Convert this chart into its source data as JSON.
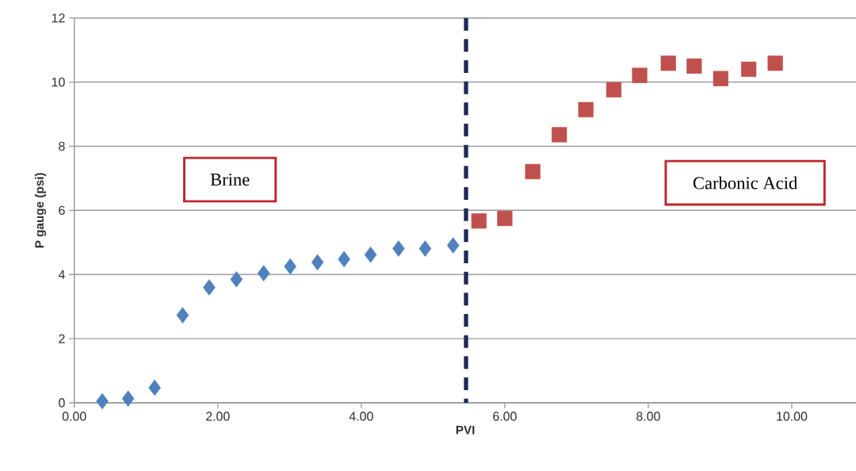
{
  "chart_data": {
    "type": "scatter",
    "xlabel": "PVI",
    "ylabel": "P gauge (psi)",
    "xlim": [
      0,
      10.9
    ],
    "ylim": [
      0,
      12
    ],
    "xticks": [
      {
        "value": 0,
        "label": "0.00"
      },
      {
        "value": 2,
        "label": "2.00"
      },
      {
        "value": 4,
        "label": "4.00"
      },
      {
        "value": 6,
        "label": "6.00"
      },
      {
        "value": 8,
        "label": "8.00"
      },
      {
        "value": 10,
        "label": "10.00"
      }
    ],
    "yticks": [
      0,
      2,
      4,
      6,
      8,
      10,
      12
    ],
    "grid": "y",
    "series": [
      {
        "color": "#4f81bd",
        "marker": "diamond",
        "x": [
          0.39,
          0.75,
          1.12,
          1.51,
          1.88,
          2.26,
          2.64,
          3.01,
          3.39,
          3.76,
          4.13,
          4.52,
          4.89,
          5.28
        ],
        "values": [
          0.05,
          0.13,
          0.47,
          2.73,
          3.6,
          3.85,
          4.04,
          4.25,
          4.38,
          4.48,
          4.62,
          4.81,
          4.81,
          4.91
        ]
      },
      {
        "color": "#c0504d",
        "marker": "square",
        "x": [
          5.64,
          6.0,
          6.39,
          6.76,
          7.13,
          7.52,
          7.88,
          8.28,
          8.64,
          9.01,
          9.4,
          9.77
        ],
        "values": [
          5.67,
          5.75,
          7.21,
          8.36,
          9.14,
          9.76,
          10.21,
          10.59,
          10.5,
          10.11,
          10.4,
          10.59
        ]
      }
    ],
    "ref_lines": [
      {
        "axis": "x",
        "value": 5.46,
        "color": "#1f2a5a",
        "line_style": "dashed"
      }
    ],
    "annotations": [
      "Brine",
      "Carbonic Acid"
    ]
  }
}
